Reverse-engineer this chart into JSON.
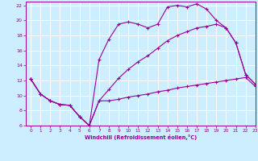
{
  "title": "",
  "xlabel": "Windchill (Refroidissement éolien,°C)",
  "background_color": "#cceeff",
  "line_color": "#990099",
  "grid_color": "#ffffff",
  "xlim": [
    -0.5,
    23
  ],
  "ylim": [
    6,
    22.5
  ],
  "xticks": [
    0,
    1,
    2,
    3,
    4,
    5,
    6,
    7,
    8,
    9,
    10,
    11,
    12,
    13,
    14,
    15,
    16,
    17,
    18,
    19,
    20,
    21,
    22,
    23
  ],
  "yticks": [
    6,
    8,
    10,
    12,
    14,
    16,
    18,
    20,
    22
  ],
  "line1_x": [
    0,
    1,
    2,
    3,
    4,
    5,
    6,
    7,
    8,
    9,
    10,
    11,
    12,
    13,
    14,
    15,
    16,
    17,
    18,
    19,
    20,
    21,
    22,
    23
  ],
  "line1_y": [
    12.2,
    10.2,
    9.3,
    8.8,
    8.7,
    7.2,
    6.0,
    9.3,
    9.3,
    9.5,
    9.8,
    10.0,
    10.2,
    10.5,
    10.7,
    11.0,
    11.2,
    11.4,
    11.6,
    11.8,
    12.0,
    12.2,
    12.4,
    11.2
  ],
  "line2_x": [
    0,
    1,
    2,
    3,
    4,
    5,
    6,
    7,
    8,
    9,
    10,
    11,
    12,
    13,
    14,
    15,
    16,
    17,
    18,
    19,
    20,
    21,
    22,
    23
  ],
  "line2_y": [
    12.2,
    10.2,
    9.3,
    8.8,
    8.7,
    7.2,
    6.0,
    14.8,
    17.5,
    19.5,
    19.8,
    19.5,
    19.0,
    19.5,
    21.8,
    22.0,
    21.8,
    22.2,
    21.5,
    20.0,
    19.0,
    17.0,
    12.8,
    11.5
  ],
  "line3_x": [
    0,
    1,
    2,
    3,
    4,
    5,
    6,
    7,
    8,
    9,
    10,
    11,
    12,
    13,
    14,
    15,
    16,
    17,
    18,
    19,
    20,
    21,
    22,
    23
  ],
  "line3_y": [
    12.2,
    10.2,
    9.3,
    8.8,
    8.7,
    7.2,
    6.0,
    9.3,
    10.8,
    12.3,
    13.5,
    14.5,
    15.3,
    16.3,
    17.3,
    18.0,
    18.5,
    19.0,
    19.2,
    19.5,
    19.0,
    17.0,
    12.8,
    11.5
  ]
}
